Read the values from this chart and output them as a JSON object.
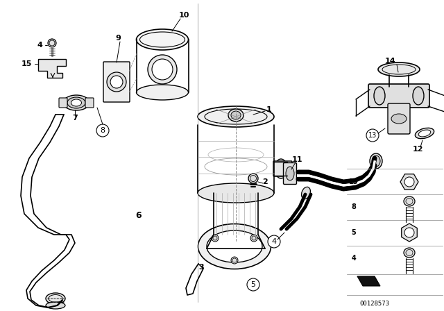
{
  "bg_color": "#ffffff",
  "line_color": "#000000",
  "diagram_id": "00128573",
  "fig_width": 6.4,
  "fig_height": 4.48,
  "dpi": 100,
  "lw": 1.0
}
